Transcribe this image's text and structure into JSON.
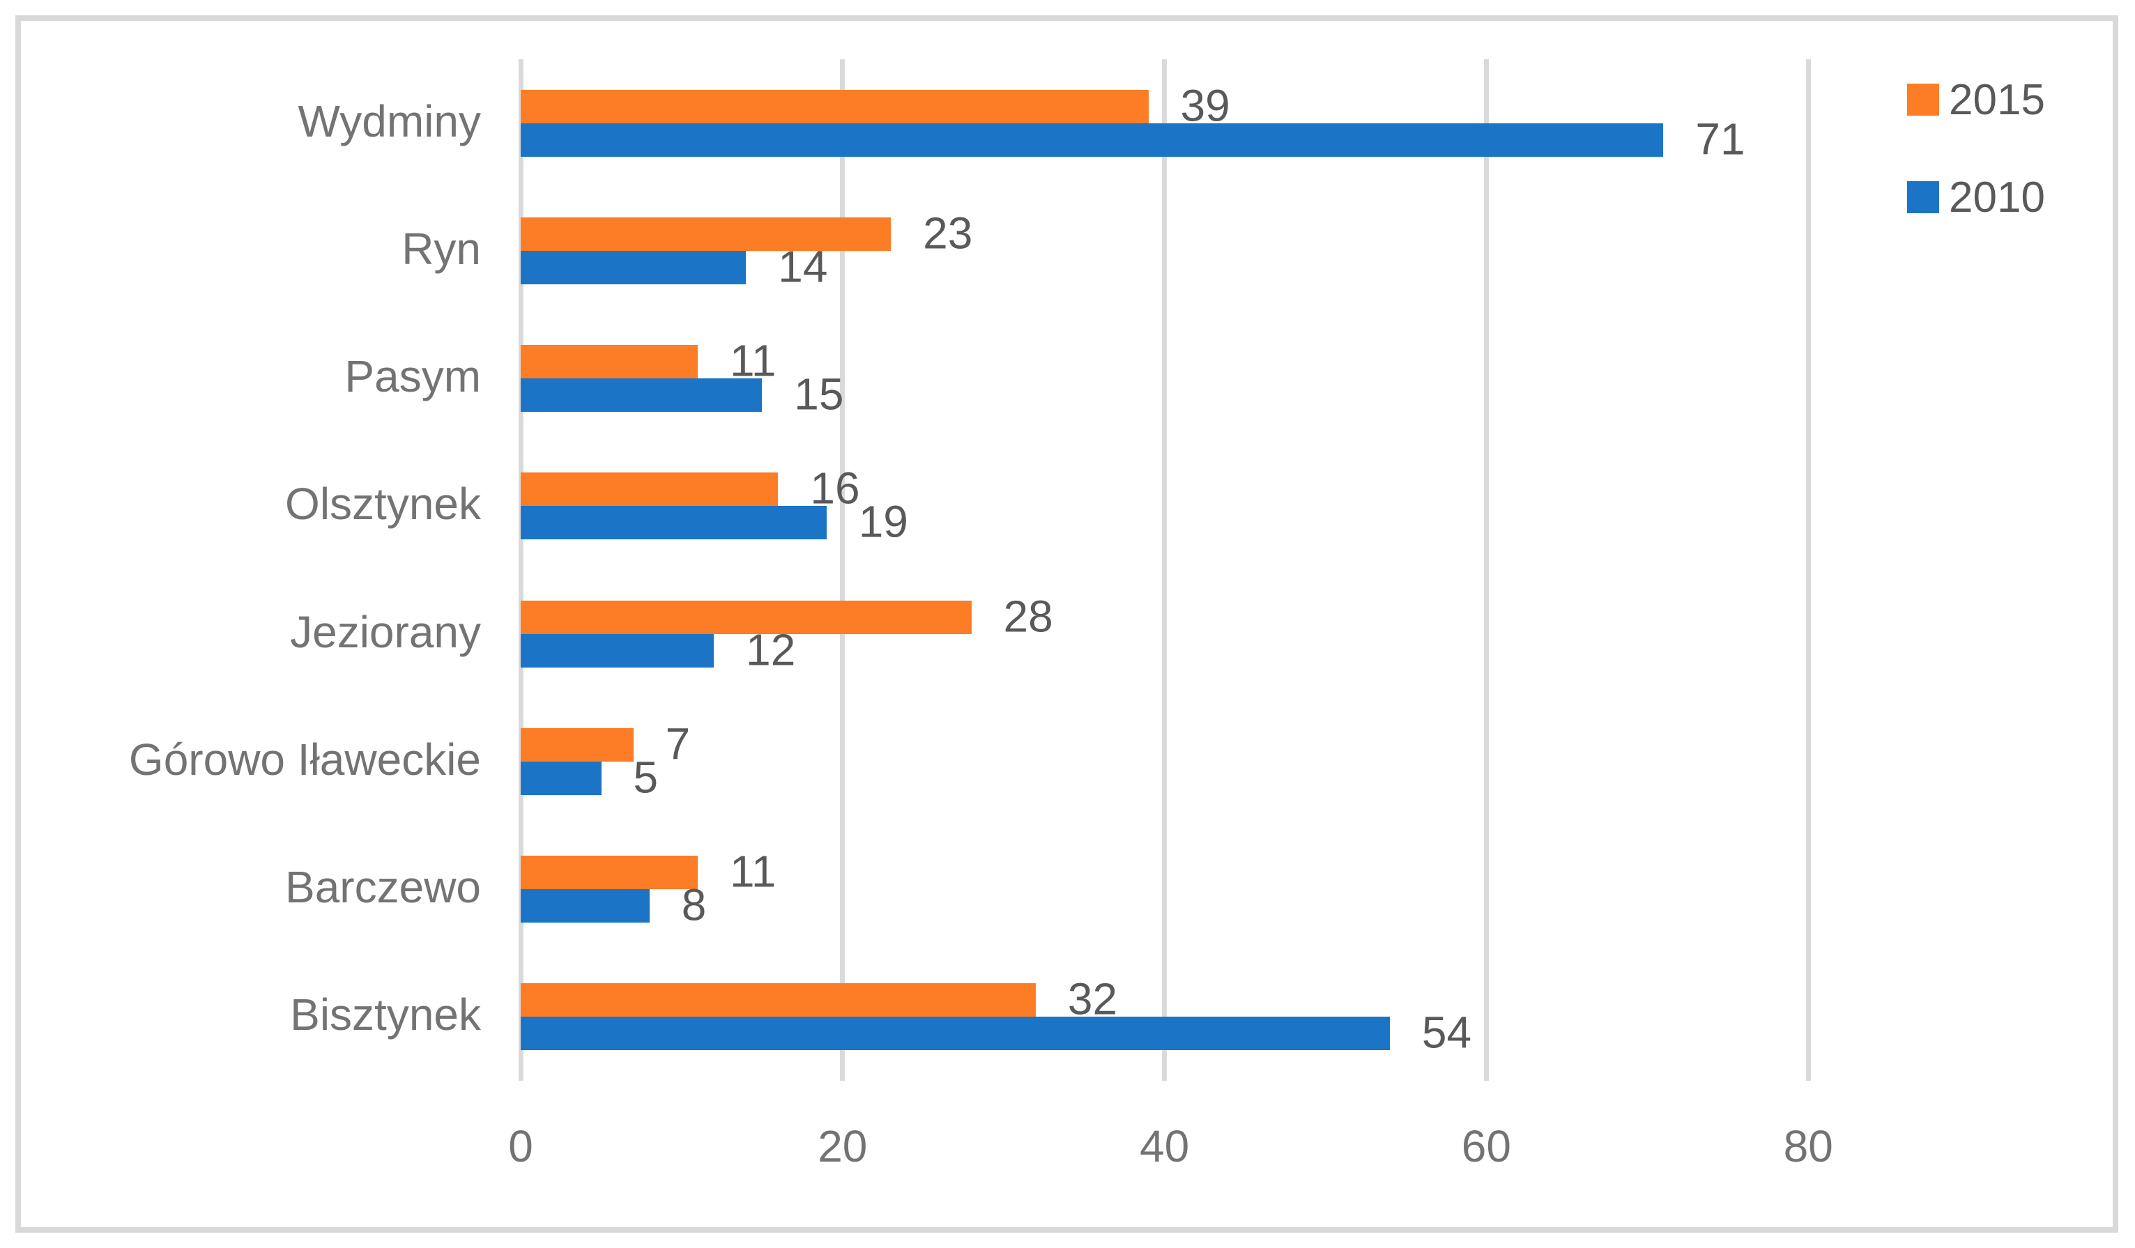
{
  "chart_data": {
    "type": "bar",
    "orientation": "horizontal",
    "categories": [
      "Wydminy",
      "Ryn",
      "Pasym",
      "Olsztynek",
      "Jeziorany",
      "Górowo Iławeckie",
      "Barczewo",
      "Bisztynek"
    ],
    "series": [
      {
        "name": "2015",
        "color": "#FC7D26",
        "values": [
          39,
          23,
          11,
          16,
          28,
          7,
          11,
          32
        ]
      },
      {
        "name": "2010",
        "color": "#1B74C5",
        "values": [
          71,
          14,
          15,
          19,
          12,
          5,
          8,
          54
        ]
      }
    ],
    "data_labels_visible": true,
    "xlabel": "",
    "ylabel": "",
    "title": "",
    "x_axis": {
      "min": 0,
      "max": 80,
      "ticks": [
        0,
        20,
        40,
        60,
        80
      ]
    },
    "grid": "vertical-only",
    "legend_position": "top-right",
    "colors": {
      "gridline": "#DADADA",
      "frame_border": "#D9D9D9",
      "axis_text": "#737373",
      "value_label_text": "#595959",
      "legend_text": "#595959",
      "background": "#FFFFFF"
    }
  }
}
